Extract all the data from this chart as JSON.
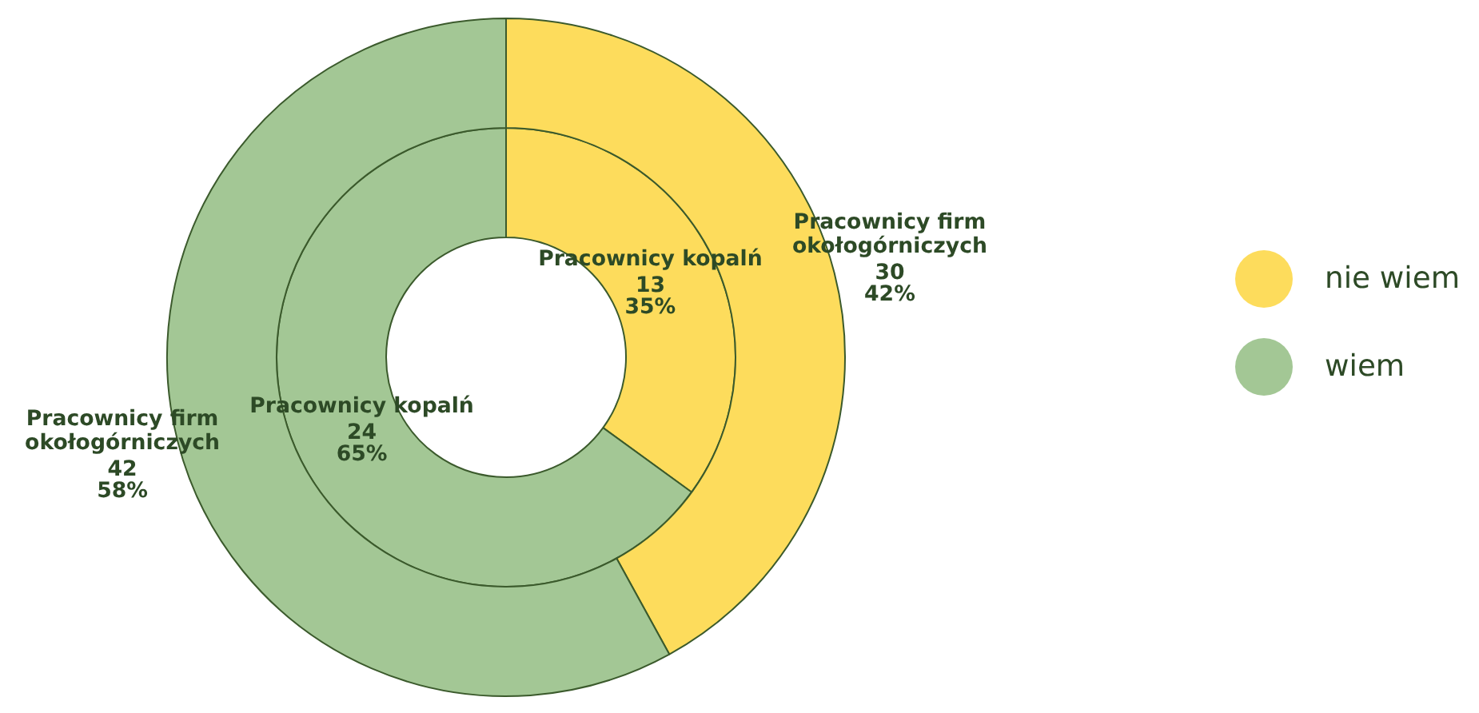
{
  "chart_data": {
    "type": "donut",
    "categories": [
      "nie wiem",
      "wiem"
    ],
    "colors": [
      "#fddc5c",
      "#a3c795"
    ],
    "series": [
      {
        "name": "Pracownicy kopalń",
        "values": [
          35,
          65
        ],
        "value_labels": [
          "13\n35%",
          "24\n65%"
        ]
      },
      {
        "name": "Pracownicy firm okołogórniczych",
        "values": [
          42,
          58
        ],
        "value_labels": [
          "30\n42%",
          "42\n58%"
        ]
      }
    ],
    "legend": "right"
  }
}
